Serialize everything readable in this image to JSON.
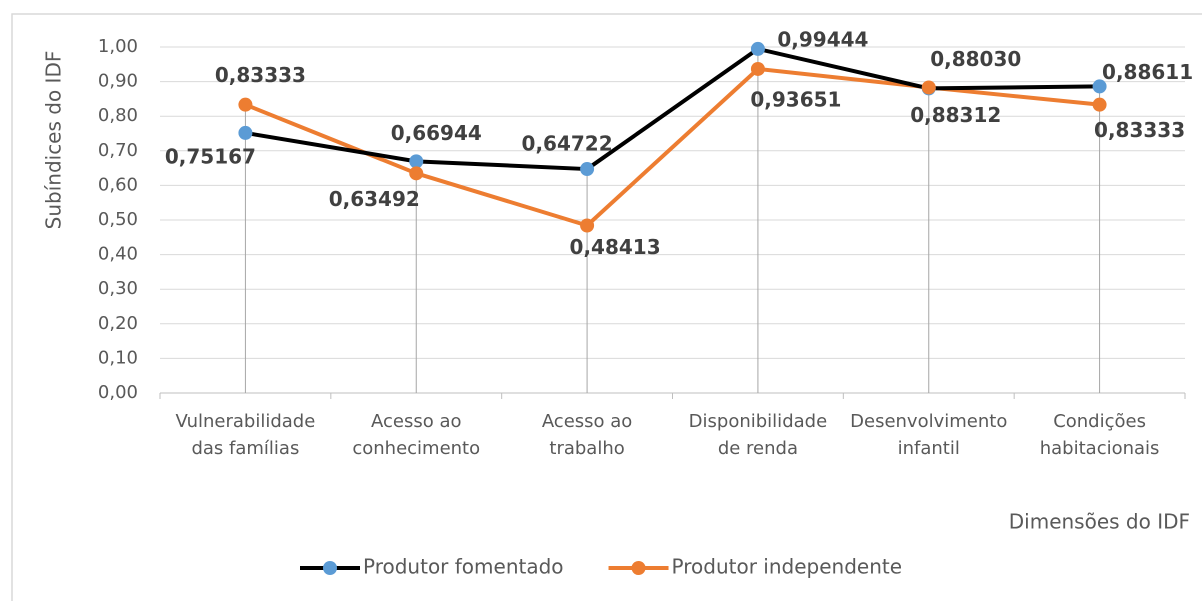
{
  "chart_data": {
    "type": "line",
    "y_axis_label": "Subíndices do IDF",
    "x_axis_label": "Dimensões do IDF",
    "categories": [
      [
        "Vulnerabilidade",
        "das famílias"
      ],
      [
        "Acesso ao",
        "conhecimento"
      ],
      [
        "Acesso ao",
        "trabalho"
      ],
      [
        "Disponibilidade",
        "de renda"
      ],
      [
        "Desenvolvimento",
        "infantil"
      ],
      [
        "Condições",
        "habitacionais"
      ]
    ],
    "series": [
      {
        "name": "Produtor fomentado",
        "color": "#000000",
        "marker_color": "#5b9bd5",
        "values": [
          0.75167,
          0.66944,
          0.64722,
          0.99444,
          0.8803,
          0.88611
        ],
        "value_labels": [
          "0,75167",
          "0,66944",
          "0,64722",
          "0,99444",
          "0,88030",
          "0,88611"
        ]
      },
      {
        "name": "Produtor independente",
        "color": "#ed7d31",
        "marker_color": "#ed7d31",
        "values": [
          0.83333,
          0.63492,
          0.48413,
          0.93651,
          0.88312,
          0.83333
        ],
        "value_labels": [
          "0,83333",
          "0,63492",
          "0,48413",
          "0,93651",
          "0,88312",
          "0,83333"
        ]
      }
    ],
    "ylim": [
      0,
      1
    ],
    "yticks": [
      {
        "value": 0,
        "label": "0,00"
      },
      {
        "value": 0.1,
        "label": "0,10"
      },
      {
        "value": 0.2,
        "label": "0,20"
      },
      {
        "value": 0.3,
        "label": "0,30"
      },
      {
        "value": 0.4,
        "label": "0,40"
      },
      {
        "value": 0.5,
        "label": "0,50"
      },
      {
        "value": 0.6,
        "label": "0,60"
      },
      {
        "value": 0.7,
        "label": "0,70"
      },
      {
        "value": 0.8,
        "label": "0,80"
      },
      {
        "value": 0.9,
        "label": "0,90"
      },
      {
        "value": 1,
        "label": "1,00"
      }
    ],
    "grid": true,
    "legend": "bottom"
  }
}
